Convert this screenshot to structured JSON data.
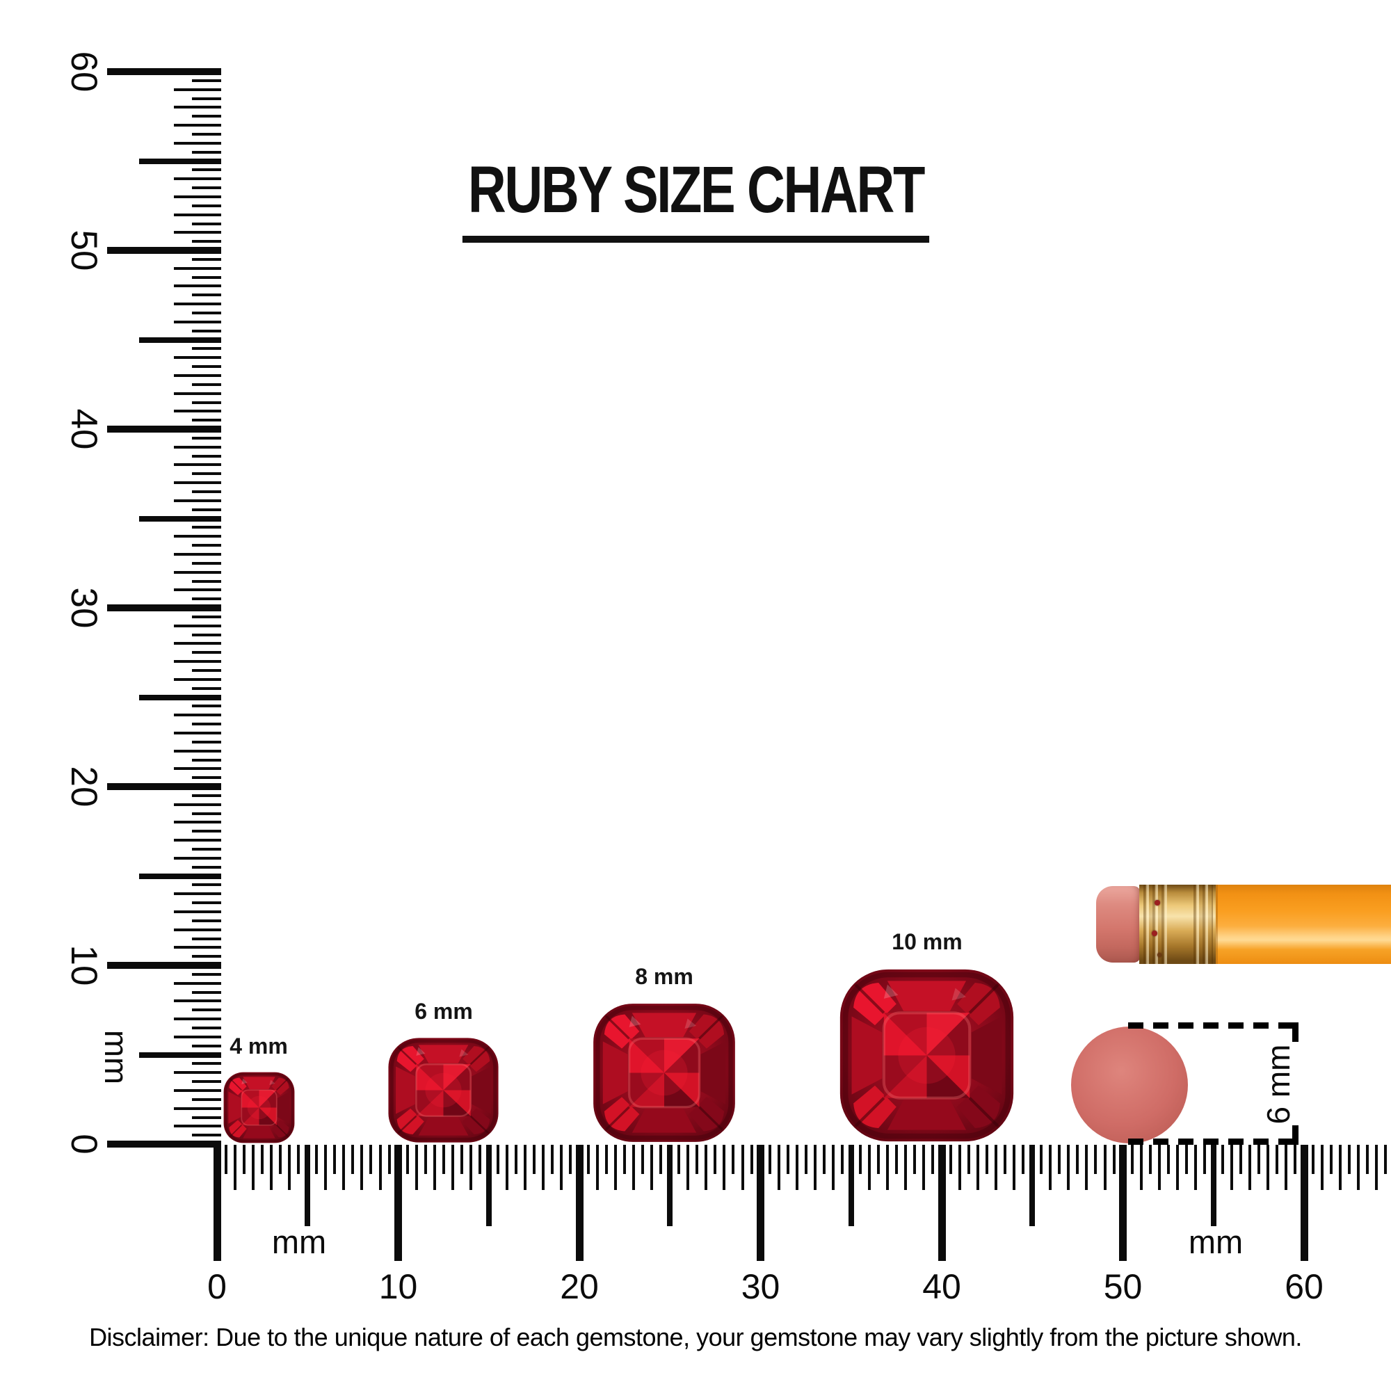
{
  "title": {
    "text": "RUBY SIZE CHART"
  },
  "vertical_ruler": {
    "unit_label": "mm",
    "number_labels": [
      0,
      10,
      20,
      30,
      40,
      50,
      60
    ],
    "min_mm": 0,
    "max_mm": 60,
    "tick_step_mm": 0.5
  },
  "horizontal_ruler": {
    "unit_label_left": "mm",
    "unit_label_right": "mm",
    "number_labels": [
      0,
      10,
      20,
      30,
      40,
      50,
      60
    ],
    "min_mm": 0,
    "max_mm": 64.5,
    "tick_step_mm": 0.5
  },
  "gems": [
    {
      "label": "4 mm",
      "size_mm": 4
    },
    {
      "label": "6 mm",
      "size_mm": 6
    },
    {
      "label": "8 mm",
      "size_mm": 8
    },
    {
      "label": "10 mm",
      "size_mm": 10
    }
  ],
  "pencil": {
    "eraser_color": "#d4776d",
    "ferrule_color": "#e9c474",
    "body_color": "#f89f21"
  },
  "eraser_disc": {
    "label": "6 mm",
    "color": "#cf6c66"
  },
  "disclaimer": {
    "text": "Disclaimer: Due to the unique nature of each gemstone, your gemstone may vary slightly from the picture shown."
  },
  "colors": {
    "ink": "#000000",
    "ruby_bright": "#e51a30",
    "ruby_mid": "#9b0e1f",
    "ruby_dark": "#570410"
  }
}
